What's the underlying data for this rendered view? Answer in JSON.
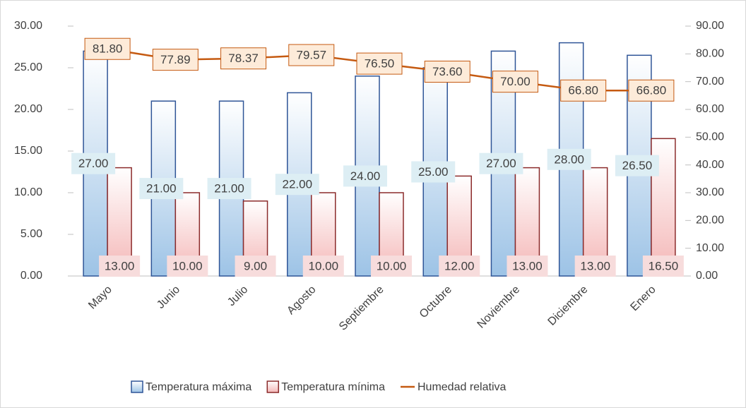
{
  "chart_data": {
    "type": "bar",
    "categories": [
      "Mayo",
      "Junio",
      "Julio",
      "Agosto",
      "Septiembre",
      "Octubre",
      "Noviembre",
      "Diciembre",
      "Enero"
    ],
    "series": [
      {
        "name": "Temperatura máxima",
        "color": "#2f5597",
        "values": [
          27,
          21,
          21,
          22,
          24,
          25,
          27,
          28,
          26.5
        ],
        "value_labels": [
          "27.00",
          "21.00",
          "21.00",
          "22.00",
          "24.00",
          "25.00",
          "27.00",
          "28.00",
          "26.50"
        ]
      },
      {
        "name": "Temperatura mínima",
        "color": "#8b2b2b",
        "values": [
          13,
          10,
          9,
          10,
          10,
          12,
          13,
          13,
          16.5
        ],
        "value_labels": [
          "13.00",
          "10.00",
          "9.00",
          "10.00",
          "10.00",
          "12.00",
          "13.00",
          "13.00",
          "16.50"
        ]
      },
      {
        "name": "Humedad relativa",
        "color": "#c55a11",
        "type": "line",
        "axis": "y2",
        "values": [
          81.8,
          77.89,
          78.37,
          79.57,
          76.5,
          73.6,
          70,
          66.8,
          66.8
        ],
        "value_labels": [
          "81.80",
          "77.89",
          "78.37",
          "79.57",
          "76.50",
          "73.60",
          "70.00",
          "66.80",
          "66.80"
        ]
      }
    ],
    "ylim": [
      0,
      30
    ],
    "yticks": [
      {
        "value": 0,
        "label": "0.00"
      },
      {
        "value": 5,
        "label": "5.00"
      },
      {
        "value": 10,
        "label": "10.00"
      },
      {
        "value": 15,
        "label": "15.00"
      },
      {
        "value": 20,
        "label": "20.00"
      },
      {
        "value": 25,
        "label": "25.00"
      },
      {
        "value": 30,
        "label": "30.00"
      }
    ],
    "y2lim": [
      0,
      90
    ],
    "y2ticks": [
      {
        "value": 0,
        "label": "0.00"
      },
      {
        "value": 10,
        "label": "10.00"
      },
      {
        "value": 20,
        "label": "20.00"
      },
      {
        "value": 30,
        "label": "30.00"
      },
      {
        "value": 40,
        "label": "40.00"
      },
      {
        "value": 50,
        "label": "50.00"
      },
      {
        "value": 60,
        "label": "60.00"
      },
      {
        "value": 70,
        "label": "70.00"
      },
      {
        "value": 80,
        "label": "80.00"
      },
      {
        "value": 90,
        "label": "90.00"
      }
    ],
    "grid": false,
    "legend": "bottom"
  }
}
